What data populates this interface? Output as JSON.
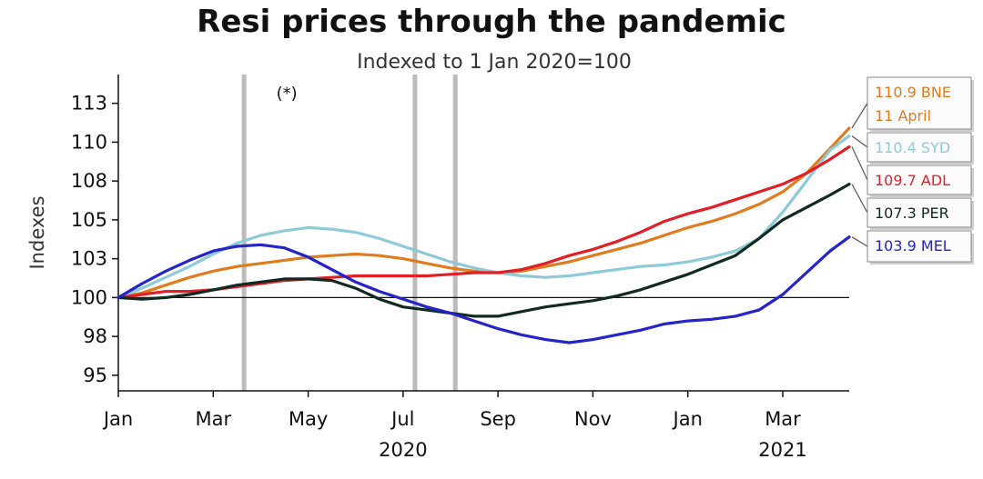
{
  "chart_data": {
    "type": "line",
    "title": "Resi prices through the pandemic",
    "subtitle": "Indexed to 1 Jan 2020=100",
    "ylabel": "Indexes",
    "xlabel": "",
    "ylim": [
      94,
      114
    ],
    "y_ticks": [
      {
        "value": 95,
        "label": "95"
      },
      {
        "value": 97.5,
        "label": "98"
      },
      {
        "value": 100,
        "label": "100"
      },
      {
        "value": 102.5,
        "label": "103"
      },
      {
        "value": 105,
        "label": "105"
      },
      {
        "value": 107.5,
        "label": "108"
      },
      {
        "value": 110,
        "label": "110"
      },
      {
        "value": 112.5,
        "label": "113"
      }
    ],
    "xlim": [
      0,
      15.4
    ],
    "x_ticks": [
      {
        "value": 0,
        "label": "Jan"
      },
      {
        "value": 2,
        "label": "Mar"
      },
      {
        "value": 4,
        "label": "May"
      },
      {
        "value": 6,
        "label": "Jul"
      },
      {
        "value": 8,
        "label": "Sep"
      },
      {
        "value": 10,
        "label": "Nov"
      },
      {
        "value": 12,
        "label": "Jan"
      },
      {
        "value": 14,
        "label": "Mar"
      }
    ],
    "year_labels": [
      {
        "value": 6,
        "label": "2020"
      },
      {
        "value": 14,
        "label": "2021"
      }
    ],
    "reference_line": 100,
    "vertical_markers": [
      2.65,
      6.25,
      7.1
    ],
    "annotation": {
      "x": 3.55,
      "y": 113.2,
      "text": "(*)"
    },
    "series": [
      {
        "name": "BNE",
        "color": "#e07b1f",
        "end_label": "110.9 BNE",
        "end_label_2": "11 April",
        "x": [
          0,
          0.5,
          1,
          1.5,
          2,
          2.5,
          3,
          3.5,
          4,
          4.5,
          5,
          5.5,
          6,
          6.5,
          7,
          7.5,
          8,
          8.5,
          9,
          9.5,
          10,
          10.5,
          11,
          11.5,
          12,
          12.5,
          13,
          13.5,
          14,
          14.5,
          15,
          15.4
        ],
        "y": [
          100,
          100.3,
          100.8,
          101.3,
          101.7,
          102,
          102.2,
          102.4,
          102.6,
          102.7,
          102.8,
          102.7,
          102.5,
          102.2,
          101.9,
          101.7,
          101.6,
          101.7,
          102,
          102.3,
          102.7,
          103.1,
          103.5,
          104,
          104.5,
          104.9,
          105.4,
          106,
          106.8,
          108,
          109.6,
          110.9
        ]
      },
      {
        "name": "SYD",
        "color": "#8ecad8",
        "end_label": "110.4 SYD",
        "x": [
          0,
          0.5,
          1,
          1.5,
          2,
          2.5,
          3,
          3.5,
          4,
          4.5,
          5,
          5.5,
          6,
          6.5,
          7,
          7.5,
          8,
          8.5,
          9,
          9.5,
          10,
          10.5,
          11,
          11.5,
          12,
          12.5,
          13,
          13.5,
          14,
          14.5,
          15,
          15.4
        ],
        "y": [
          100,
          100.6,
          101.3,
          102,
          102.8,
          103.5,
          104,
          104.3,
          104.5,
          104.4,
          104.2,
          103.8,
          103.3,
          102.8,
          102.3,
          101.9,
          101.6,
          101.4,
          101.3,
          101.4,
          101.6,
          101.8,
          102,
          102.1,
          102.3,
          102.6,
          103,
          103.8,
          105.5,
          107.5,
          109.5,
          110.4
        ]
      },
      {
        "name": "ADL",
        "color": "#e11f26",
        "end_label": "109.7 ADL",
        "x": [
          0,
          0.5,
          1,
          1.5,
          2,
          2.5,
          3,
          3.5,
          4,
          4.5,
          5,
          5.5,
          6,
          6.5,
          7,
          7.5,
          8,
          8.5,
          9,
          9.5,
          10,
          10.5,
          11,
          11.5,
          12,
          12.5,
          13,
          13.5,
          14,
          14.5,
          15,
          15.4
        ],
        "y": [
          100,
          100.2,
          100.4,
          100.4,
          100.5,
          100.7,
          100.9,
          101.1,
          101.2,
          101.3,
          101.4,
          101.4,
          101.4,
          101.4,
          101.5,
          101.6,
          101.6,
          101.8,
          102.2,
          102.7,
          103.1,
          103.6,
          104.2,
          104.9,
          105.4,
          105.8,
          106.3,
          106.8,
          107.3,
          108,
          108.9,
          109.7
        ]
      },
      {
        "name": "PER",
        "color": "#102a22",
        "end_label": "107.3 PER",
        "x": [
          0,
          0.5,
          1,
          1.5,
          2,
          2.5,
          3,
          3.5,
          4,
          4.5,
          5,
          5.5,
          6,
          6.5,
          7,
          7.5,
          8,
          8.5,
          9,
          9.5,
          10,
          10.5,
          11,
          11.5,
          12,
          12.5,
          13,
          13.5,
          14,
          14.5,
          15,
          15.4
        ],
        "y": [
          100,
          99.9,
          100,
          100.2,
          100.5,
          100.8,
          101,
          101.2,
          101.2,
          101.1,
          100.6,
          99.9,
          99.4,
          99.2,
          99,
          98.8,
          98.8,
          99.1,
          99.4,
          99.6,
          99.8,
          100.1,
          100.5,
          101,
          101.5,
          102.1,
          102.7,
          103.8,
          105,
          105.8,
          106.6,
          107.3
        ]
      },
      {
        "name": "MEL",
        "color": "#2424c8",
        "end_label": "103.9 MEL",
        "x": [
          0,
          0.5,
          1,
          1.5,
          2,
          2.5,
          3,
          3.5,
          4,
          4.5,
          5,
          5.5,
          6,
          6.5,
          7,
          7.5,
          8,
          8.5,
          9,
          9.5,
          10,
          10.5,
          11,
          11.5,
          12,
          12.5,
          13,
          13.5,
          14,
          14.5,
          15,
          15.4
        ],
        "y": [
          100,
          100.9,
          101.7,
          102.4,
          103,
          103.3,
          103.4,
          103.2,
          102.6,
          101.8,
          101,
          100.4,
          99.9,
          99.4,
          99,
          98.5,
          98,
          97.6,
          97.3,
          97.1,
          97.3,
          97.6,
          97.9,
          98.3,
          98.5,
          98.6,
          98.8,
          99.2,
          100.2,
          101.6,
          103,
          103.9
        ]
      }
    ]
  }
}
